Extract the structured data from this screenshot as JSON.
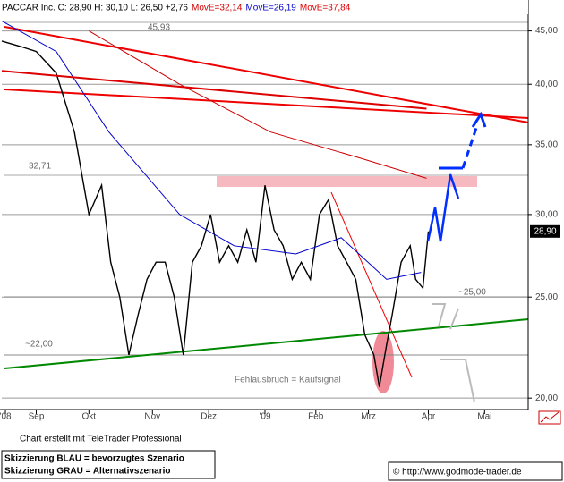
{
  "chart_data": {
    "type": "line",
    "log_scale": true,
    "grid": true,
    "xlim": [
      0,
      290
    ],
    "ylim": [
      19.5,
      46.5
    ],
    "xticks": [
      {
        "value": 2,
        "label": "'08"
      },
      {
        "value": 19,
        "label": "Sep"
      },
      {
        "value": 48,
        "label": "Okt"
      },
      {
        "value": 83,
        "label": "Nov"
      },
      {
        "value": 114,
        "label": "Dez"
      },
      {
        "value": 145,
        "label": "'09"
      },
      {
        "value": 173,
        "label": "Feb"
      },
      {
        "value": 202,
        "label": "Mrz"
      },
      {
        "value": 235,
        "label": "Apr"
      },
      {
        "value": 266,
        "label": "Mai"
      }
    ],
    "yticks": [
      {
        "value": 20,
        "label": "20,00"
      },
      {
        "value": 25,
        "label": "25,00"
      },
      {
        "value": 30,
        "label": "30,00"
      },
      {
        "value": 35,
        "label": "35,00"
      },
      {
        "value": 40,
        "label": "40,00"
      },
      {
        "value": 45,
        "label": "45,00"
      }
    ],
    "series": [
      {
        "name": "PACCAR Inc. C: 28,90 H: 30,10 L: 26,50 +2,76",
        "color": "#000000",
        "x": [
          0,
          10,
          19,
          30,
          40,
          48,
          55,
          60,
          65,
          70,
          75,
          80,
          85,
          90,
          95,
          100,
          105,
          110,
          115,
          120,
          125,
          130,
          135,
          140,
          145,
          150,
          155,
          160,
          165,
          170,
          175,
          180,
          185,
          190,
          195,
          200,
          205,
          208,
          212,
          215,
          220,
          225,
          228,
          232,
          235
        ],
        "values": [
          44,
          43.5,
          43,
          41,
          36,
          30,
          32,
          27,
          25,
          22,
          24,
          26,
          27,
          27,
          25,
          22,
          27,
          28,
          30,
          27,
          28,
          27,
          29,
          27,
          32,
          29,
          28,
          26,
          27,
          26,
          30,
          31,
          28,
          27,
          26,
          23,
          22,
          20.5,
          22.5,
          24,
          27,
          28,
          26,
          25.5,
          28.9
        ]
      },
      {
        "name": "MovE=32,14",
        "color": "#cc0000",
        "x": [
          48,
          98,
          148,
          197,
          234
        ],
        "values": [
          45,
          40,
          36,
          34,
          32.5
        ]
      },
      {
        "name": "MovE=26,19",
        "color": "#0000cc",
        "x": [
          0,
          30,
          59,
          98,
          128,
          162,
          187,
          212,
          231
        ],
        "values": [
          46,
          43,
          36,
          30,
          28,
          27.5,
          28.5,
          26,
          26.4
        ]
      },
      {
        "name": "MovE=37,84",
        "color": "#dd0000",
        "x": [
          0,
          234
        ],
        "values": [
          41.2,
          37.9
        ]
      }
    ],
    "last_price": {
      "value": 28.9,
      "label": "28,90"
    },
    "annotations": [
      "45,93",
      "32,71",
      "~25,00",
      "~22,00",
      "Fehlausbruch = Kaufsignal"
    ],
    "footer": [
      "Chart erstellt mit TeleTrader Professional",
      "Skizzierung BLAU = bevorzugtes Szenario",
      "Skizzierung GRAU = Alternativszenario",
      "© http://www.godmode-trader.de"
    ]
  }
}
